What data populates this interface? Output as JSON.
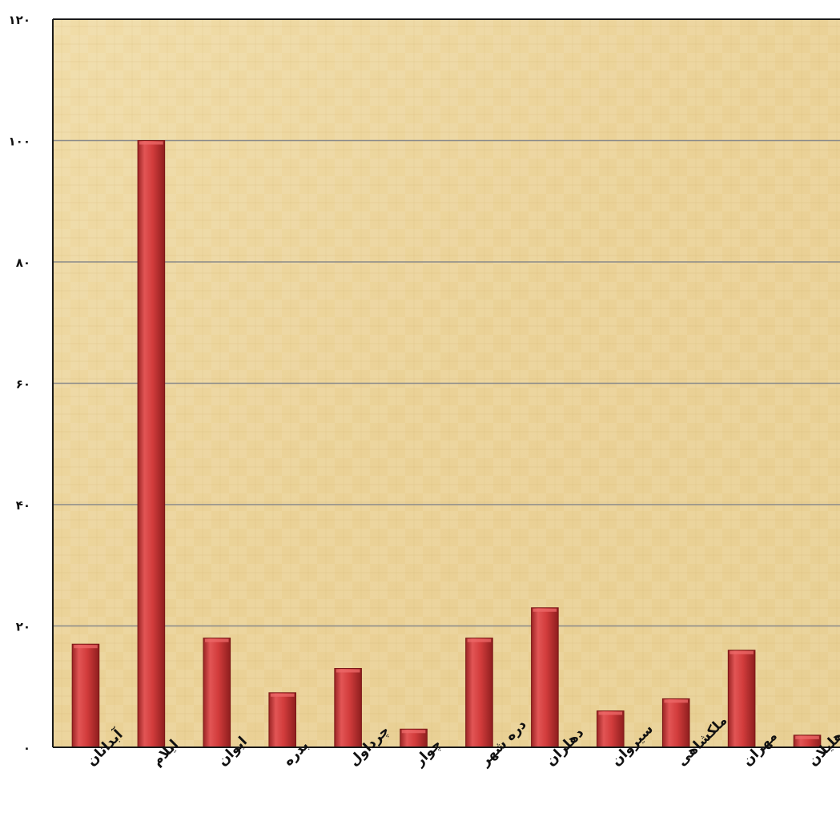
{
  "chart_data": {
    "type": "bar",
    "title": "",
    "xlabel": "",
    "ylabel": "",
    "categories": [
      "آبدانان",
      "ایلام",
      "ایوان",
      "بدره",
      "چرداول",
      "چوار",
      "دره شهر",
      "دهلران",
      "سیروان",
      "ملکشاهی",
      "مهران",
      "هلیلان"
    ],
    "values": [
      17,
      100,
      18,
      9,
      13,
      3,
      18,
      23,
      6,
      8,
      16,
      2
    ],
    "ylim": [
      0,
      120
    ],
    "y_ticks": [
      0,
      20,
      40,
      60,
      80,
      100,
      120
    ],
    "y_tick_labels": [
      "۰",
      "۲۰",
      "۴۰",
      "۶۰",
      "۸۰",
      "۱۰۰",
      "۱۲۰"
    ],
    "grid": true,
    "legend": "none",
    "colors": {
      "bar": "#cf3a3a",
      "bar_dark": "#8e1e1e",
      "bar_light": "#ee6a6a",
      "background": "#ebd39a",
      "background_light": "#f3e1b3",
      "gridline": "#8a8a8a",
      "axis": "#1a1a1a"
    }
  }
}
